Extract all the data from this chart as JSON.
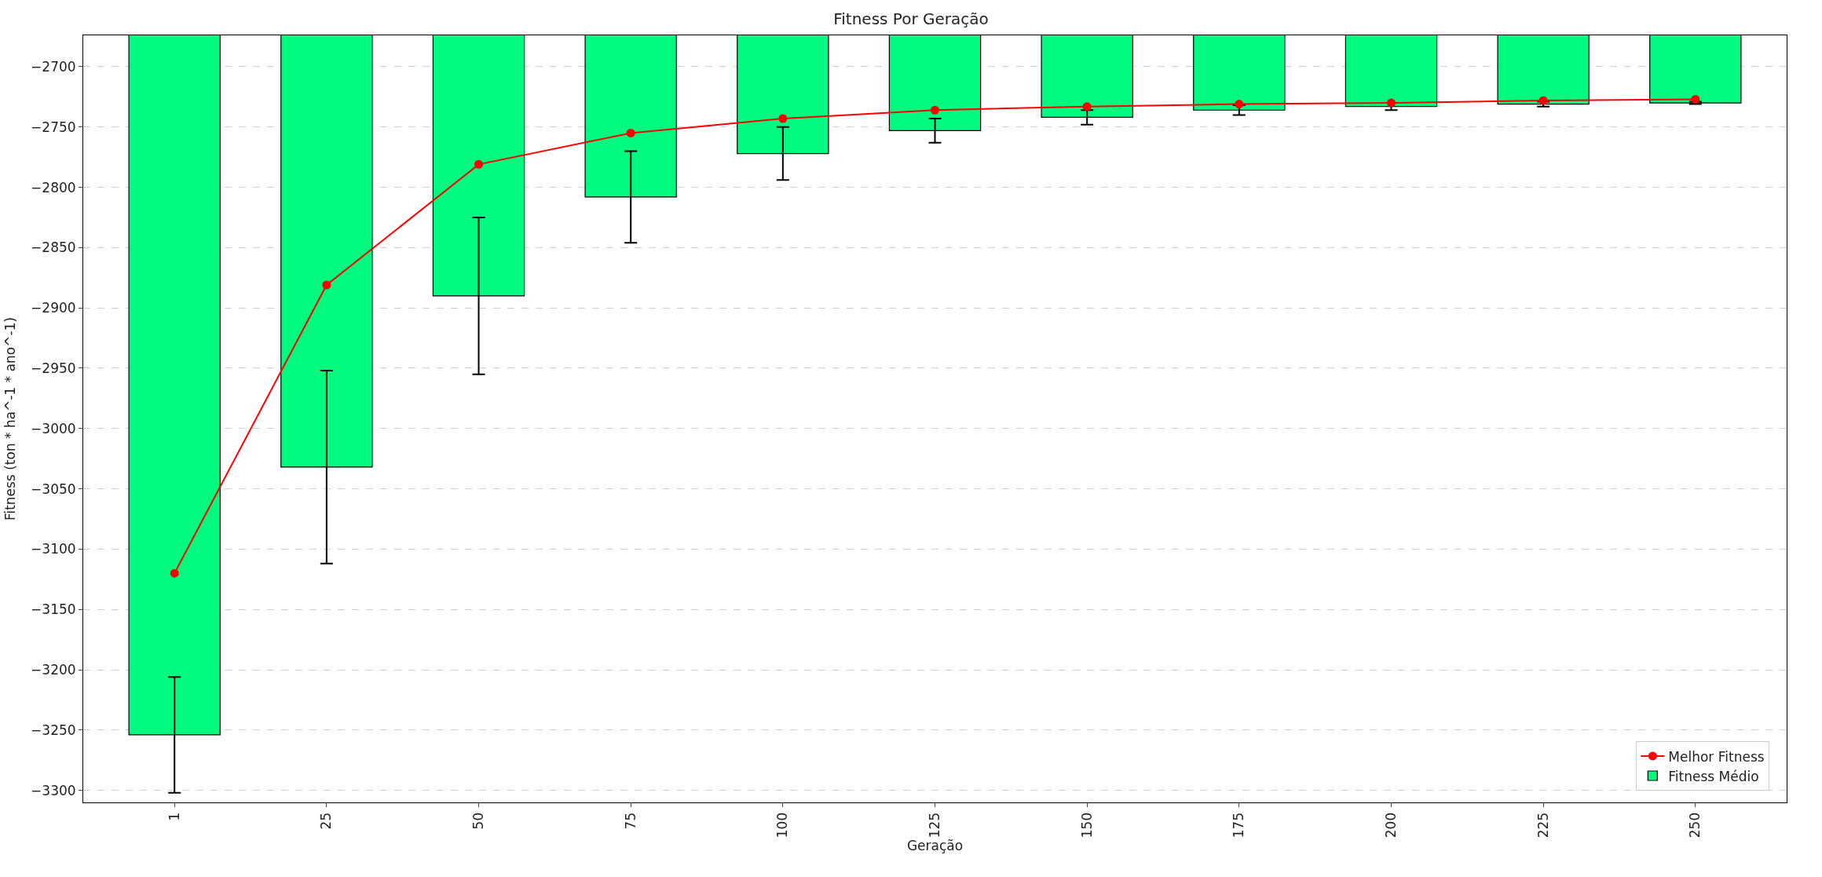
{
  "chart_data": {
    "type": "bar",
    "title": "Fitness Por Geração",
    "xlabel": "Geração",
    "ylabel": "Fitness (ton * ha^-1 * ano^-1)",
    "categories": [
      "1",
      "25",
      "50",
      "75",
      "100",
      "125",
      "150",
      "175",
      "200",
      "225",
      "250"
    ],
    "series": [
      {
        "name": "Fitness Médio",
        "color": "#00fa7f",
        "values": [
          -3254,
          -3032,
          -2890,
          -2808,
          -2772,
          -2753,
          -2742,
          -2736,
          -2733,
          -2731,
          -2730
        ],
        "errors": [
          48,
          80,
          65,
          38,
          22,
          10,
          6,
          4,
          3,
          2,
          1
        ]
      },
      {
        "name": "Melhor Fitness",
        "type": "line",
        "color": "#ff0000",
        "marker": "circle",
        "values": [
          -3120,
          -2881,
          -2781,
          -2755,
          -2743,
          -2736,
          -2733,
          -2731,
          -2730,
          -2728,
          -2727
        ]
      }
    ],
    "ylim": [
      -3310,
      -2674
    ],
    "yticks": [
      -3300,
      -3250,
      -3200,
      -3150,
      -3100,
      -3050,
      -3000,
      -2950,
      -2900,
      -2850,
      -2800,
      -2750,
      -2700
    ],
    "grid": "y",
    "legend": "bottom right"
  }
}
